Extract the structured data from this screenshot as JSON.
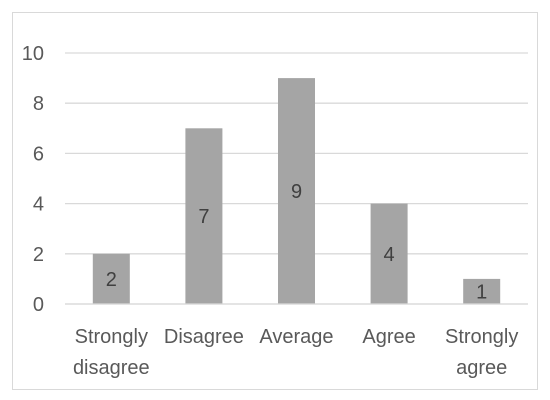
{
  "chart_data": {
    "type": "bar",
    "categories": [
      [
        "Strongly",
        "disagree"
      ],
      [
        "Disagree"
      ],
      [
        "Average"
      ],
      [
        "Agree"
      ],
      [
        "Strongly",
        "agree"
      ]
    ],
    "values": [
      2,
      7,
      9,
      4,
      1
    ],
    "data_labels": [
      "2",
      "7",
      "9",
      "4",
      "1"
    ],
    "y_ticks": [
      "0",
      "2",
      "4",
      "6",
      "8",
      "10"
    ],
    "ylim": [
      0,
      10
    ],
    "grid": true,
    "title": "",
    "xlabel": "",
    "ylabel": "",
    "colors": {
      "bar": "#a5a5a5",
      "grid": "#d9d9d9",
      "tick_text": "#595959",
      "label_text": "#404040"
    }
  }
}
